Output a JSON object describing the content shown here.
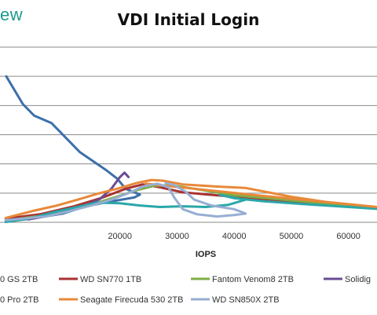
{
  "brand": "ew",
  "chart_data": {
    "type": "line",
    "title": "VDI Initial Login",
    "xlabel": "IOPS",
    "ylabel": "",
    "xlim": [
      -1000,
      65000
    ],
    "ylim": [
      0,
      12
    ],
    "x_ticks": [
      20000,
      30000,
      40000,
      50000,
      60000
    ],
    "x_tick_labels": [
      "20000",
      "30000",
      "40000",
      "50000",
      "60000"
    ],
    "grid": "horizontal",
    "legend_position": "bottom",
    "legend_visible": [
      {
        "text": "0 GS 2TB",
        "color": "#3d6faa"
      },
      {
        "text": "WD SN770 1TB",
        "color": "#a83232"
      },
      {
        "text": "Fantom Venom8 2TB",
        "color": "#7fad47"
      },
      {
        "text": "Solidig",
        "color": "#6a4c93"
      },
      {
        "text": "0 Pro 2TB",
        "color": "#2aa7a9"
      },
      {
        "text": "Seagate Firecuda 530 2TB",
        "color": "#e8893a"
      },
      {
        "text": "WD SN850X 2TB",
        "color": "#97aed2"
      }
    ],
    "series": [
      {
        "color": "#3d6faa",
        "points": [
          [
            100,
            10
          ],
          [
            3000,
            8.1
          ],
          [
            5000,
            7.3
          ],
          [
            8000,
            6.8
          ],
          [
            13000,
            4.8
          ],
          [
            17500,
            3.6
          ],
          [
            19500,
            3
          ],
          [
            21000,
            2.3
          ],
          [
            23500,
            1.9
          ],
          [
            22500,
            1.7
          ],
          [
            18000,
            1.4
          ],
          [
            14000,
            1.1
          ],
          [
            10000,
            0.6
          ],
          [
            4000,
            0.22
          ],
          [
            0,
            0.08
          ]
        ]
      },
      {
        "color": "#a83232",
        "points": [
          [
            0,
            0.25
          ],
          [
            6000,
            0.55
          ],
          [
            12000,
            1.1
          ],
          [
            17000,
            1.7
          ],
          [
            21000,
            2.3
          ],
          [
            24000,
            2.6
          ],
          [
            27000,
            2.4
          ],
          [
            31000,
            2.05
          ],
          [
            40000,
            1.75
          ],
          [
            65000,
            1
          ]
        ]
      },
      {
        "color": "#7fad47",
        "points": [
          [
            0,
            0.12
          ],
          [
            8000,
            0.55
          ],
          [
            14000,
            1.1
          ],
          [
            19000,
            1.7
          ],
          [
            23000,
            2.2
          ],
          [
            26000,
            2.5
          ],
          [
            29000,
            2.55
          ],
          [
            33000,
            2.3
          ],
          [
            40000,
            1.85
          ],
          [
            65000,
            0.98
          ]
        ]
      },
      {
        "color": "#6a4c93",
        "points": [
          [
            4000,
            0.2
          ],
          [
            9000,
            0.55
          ],
          [
            13500,
            1.05
          ],
          [
            16500,
            1.6
          ],
          [
            18500,
            2.3
          ],
          [
            20000,
            3.1
          ],
          [
            20800,
            3.4
          ],
          [
            21500,
            3.1
          ]
        ]
      },
      {
        "color": "#2aa7a9",
        "points": [
          [
            0,
            0.02
          ],
          [
            4000,
            0.25
          ],
          [
            8000,
            0.65
          ],
          [
            12000,
            1
          ],
          [
            16000,
            1.35
          ],
          [
            20000,
            1.3
          ],
          [
            23500,
            1.15
          ],
          [
            27000,
            1.05
          ],
          [
            31000,
            1.1
          ],
          [
            35000,
            1.05
          ],
          [
            39000,
            1.2
          ],
          [
            42000,
            1.55
          ],
          [
            39000,
            1.75
          ],
          [
            37500,
            1.88
          ],
          [
            40000,
            1.65
          ],
          [
            45000,
            1.45
          ],
          [
            52000,
            1.25
          ],
          [
            65000,
            0.92
          ]
        ]
      },
      {
        "color": "#e8893a",
        "points": [
          [
            0,
            0.3
          ],
          [
            5000,
            0.8
          ],
          [
            9000,
            1.15
          ],
          [
            13000,
            1.6
          ],
          [
            16000,
            1.95
          ],
          [
            19500,
            2.3
          ],
          [
            23000,
            2.7
          ],
          [
            25500,
            2.9
          ],
          [
            27500,
            2.85
          ],
          [
            31000,
            2.6
          ],
          [
            37000,
            2.45
          ],
          [
            42000,
            2.35
          ],
          [
            46000,
            2.05
          ],
          [
            50000,
            1.75
          ],
          [
            56000,
            1.4
          ],
          [
            65000,
            1.05
          ],
          [
            44000,
            1.85
          ],
          [
            33000,
            2.3
          ],
          [
            24500,
            2.65
          ]
        ]
      },
      {
        "color": "#97aed2",
        "points": [
          [
            0,
            0.15
          ],
          [
            7000,
            0.4
          ],
          [
            11000,
            0.75
          ],
          [
            15000,
            1.15
          ],
          [
            18500,
            1.55
          ],
          [
            21500,
            2
          ],
          [
            24000,
            2.45
          ],
          [
            26500,
            2.65
          ],
          [
            28500,
            2.4
          ],
          [
            29500,
            1.7
          ],
          [
            31000,
            0.9
          ],
          [
            33500,
            0.55
          ],
          [
            37000,
            0.4
          ],
          [
            40000,
            0.5
          ],
          [
            42000,
            0.6
          ],
          [
            40000,
            0.9
          ],
          [
            36000,
            1.15
          ],
          [
            33000,
            1.55
          ],
          [
            31500,
            2.1
          ],
          [
            29500,
            2.55
          ],
          [
            28000,
            2.7
          ]
        ]
      }
    ]
  }
}
